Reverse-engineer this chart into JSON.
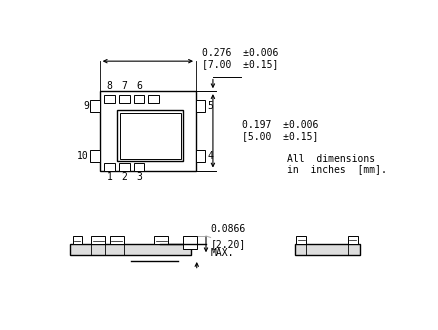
{
  "bg_color": "#ffffff",
  "line_color": "#000000",
  "gray_color": "#aaaaaa",
  "dim_width_text": "0.276  ±0.006",
  "dim_width_text2": "[7.00  ±0.15]",
  "dim_height_text": "0.197  ±0.006",
  "dim_height_text2": "[5.00  ±0.15]",
  "dim_height3": "0.0866",
  "dim_height4": "[2.20]",
  "dim_height5": "MAX.",
  "note1": "All  dimensions",
  "note2": "in  inches  [mm].",
  "pin_labels_top": [
    "8",
    "7",
    "6"
  ],
  "pin_labels_bottom": [
    "1",
    "2",
    "3"
  ],
  "pin_label_left_top": "9",
  "pin_label_left_bottom": "10",
  "pin_label_right_top": "5",
  "pin_label_right_bottom": "4"
}
